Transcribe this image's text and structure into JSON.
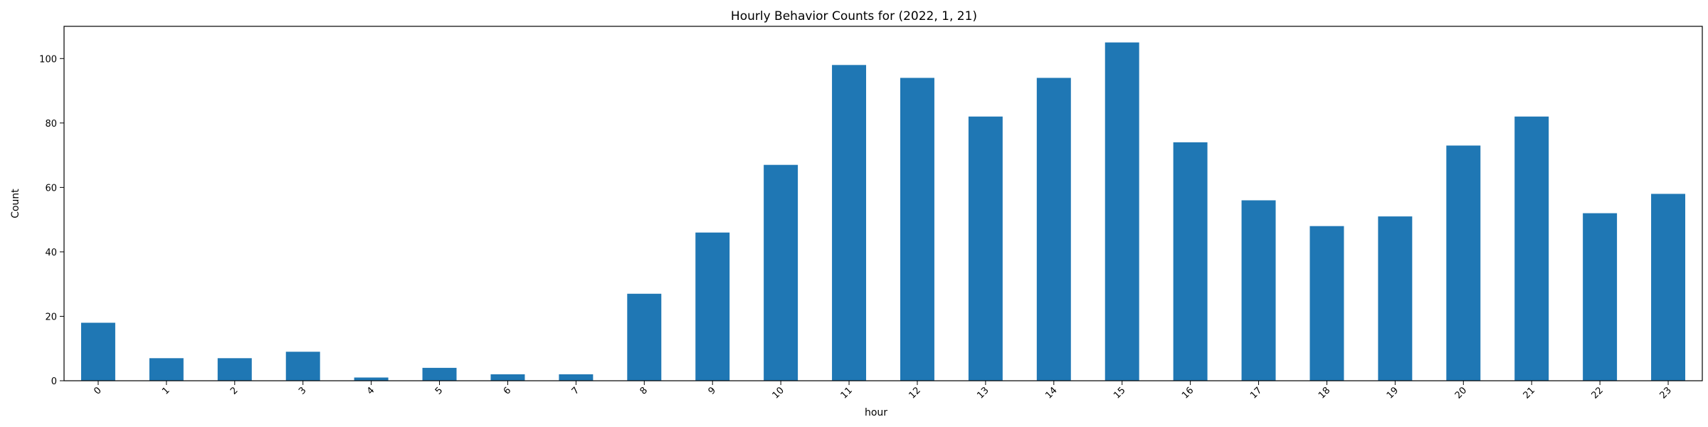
{
  "chart_data": {
    "type": "bar",
    "title": "Hourly Behavior Counts for (2022, 1, 21)",
    "xlabel": "hour",
    "ylabel": "Count",
    "categories": [
      "0",
      "1",
      "2",
      "3",
      "4",
      "5",
      "6",
      "7",
      "8",
      "9",
      "10",
      "11",
      "12",
      "13",
      "14",
      "15",
      "16",
      "17",
      "18",
      "19",
      "20",
      "21",
      "22",
      "23"
    ],
    "values": [
      18,
      7,
      7,
      9,
      1,
      4,
      2,
      2,
      27,
      46,
      67,
      98,
      94,
      82,
      94,
      105,
      74,
      56,
      48,
      51,
      73,
      82,
      52,
      58
    ],
    "ylim": [
      0,
      110
    ],
    "yticks": [
      0,
      20,
      40,
      60,
      80,
      100
    ],
    "xtick_rotation": 45,
    "grid": false,
    "legend": false,
    "colors": {
      "bar": "#1f77b4"
    }
  }
}
